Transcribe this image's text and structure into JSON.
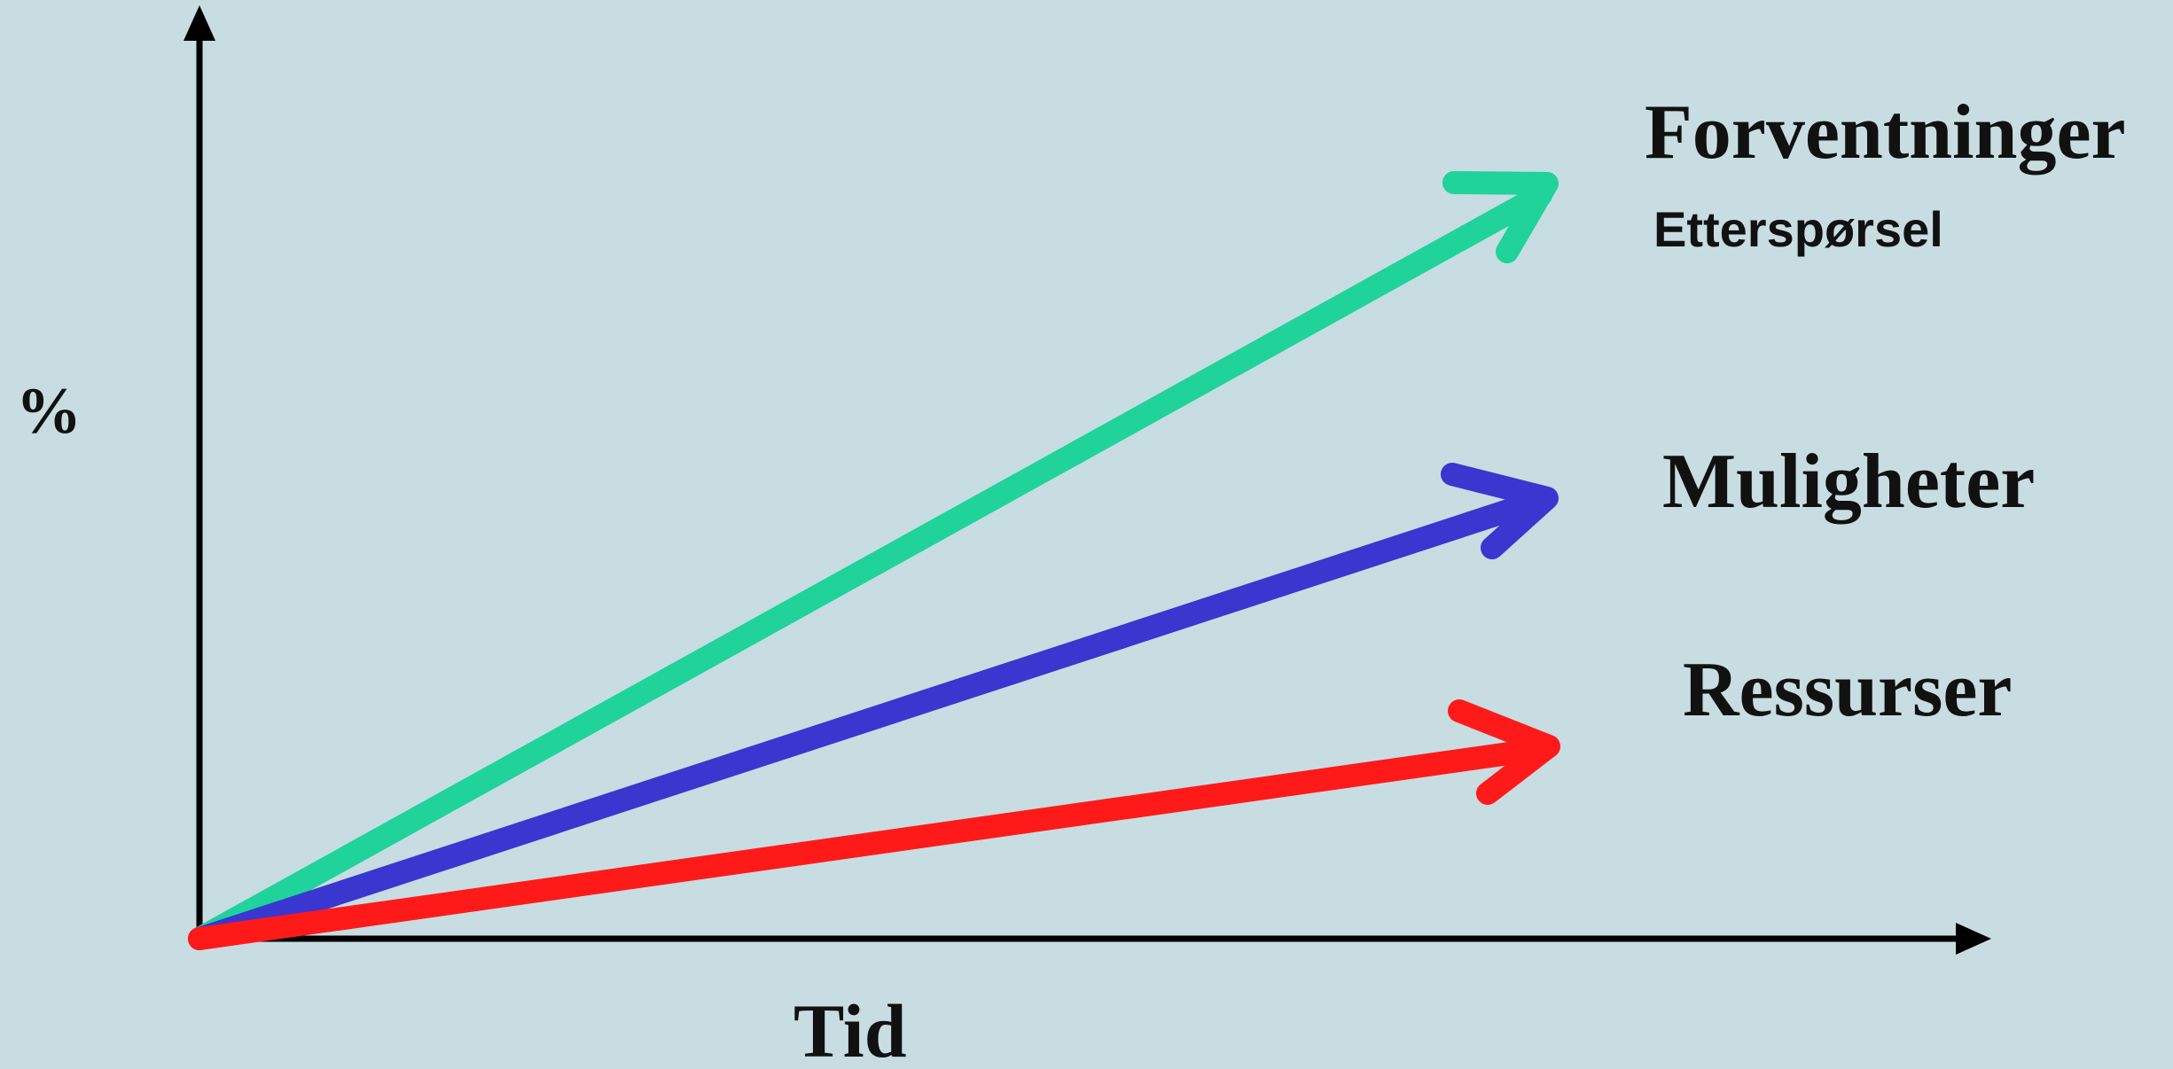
{
  "axes": {
    "y_label": "%",
    "x_label": "Tid",
    "axis_color": "#000000"
  },
  "arrows": [
    {
      "name": "Forventninger",
      "sublabel": "Etterspørsel",
      "color": "#1fd39b",
      "relative_growth": 1.0
    },
    {
      "name": "Muligheter",
      "sublabel": "",
      "color": "#3a36d0",
      "relative_growth": 0.61
    },
    {
      "name": "Ressurser",
      "sublabel": "",
      "color": "#ff1a1a",
      "relative_growth": 0.26
    }
  ],
  "background_color": "#c7dde2"
}
